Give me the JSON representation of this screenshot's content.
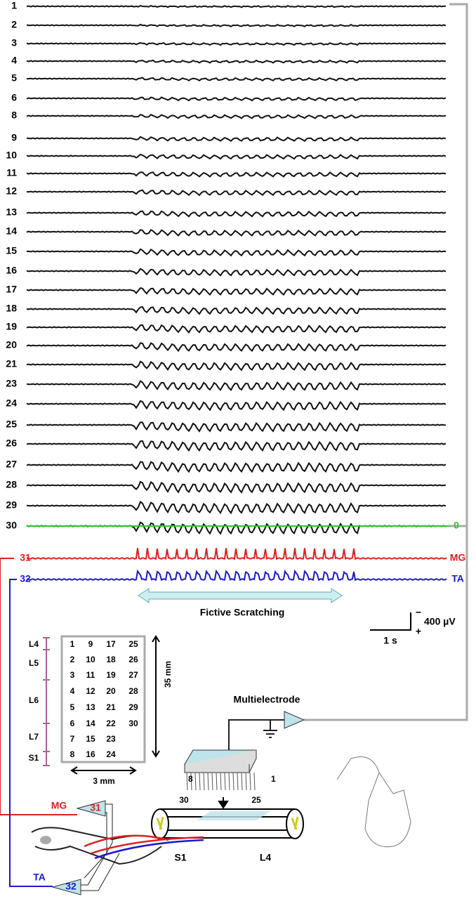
{
  "traces": {
    "labels": [
      "1",
      "2",
      "3",
      "4",
      "5",
      "6",
      "8",
      "9",
      "10",
      "11",
      "12",
      "13",
      "14",
      "15",
      "16",
      "17",
      "18",
      "19",
      "20",
      "21",
      "23",
      "24",
      "25",
      "26",
      "27",
      "28",
      "29",
      "30"
    ],
    "zero_label": "0",
    "emg": [
      {
        "channel": "31",
        "muscle": "MG"
      },
      {
        "channel": "32",
        "muscle": "TA"
      }
    ]
  },
  "annotation": "Fictive Scratching",
  "scale_bar": {
    "time": "1 s",
    "voltage": "400 µV",
    "minus": "−",
    "plus": "+"
  },
  "electrode_map": {
    "rows": [
      [
        "1",
        "9",
        "17",
        "25"
      ],
      [
        "2",
        "10",
        "18",
        "26"
      ],
      [
        "3",
        "11",
        "19",
        "27"
      ],
      [
        "4",
        "12",
        "20",
        "28"
      ],
      [
        "5",
        "13",
        "21",
        "29"
      ],
      [
        "6",
        "14",
        "22",
        "30"
      ],
      [
        "7",
        "15",
        "23"
      ],
      [
        "8",
        "16",
        "24"
      ]
    ],
    "segments": [
      "L4",
      "L5",
      "L6",
      "L7",
      "S1"
    ],
    "height": "35 mm",
    "width": "3 mm"
  },
  "setup": {
    "title": "Multielectrode",
    "pins": [
      "8",
      "1"
    ],
    "cord_channels": [
      "30",
      "25"
    ],
    "cord_segments": [
      "S1",
      "L4"
    ],
    "amplifiers": [
      {
        "muscle": "MG",
        "channel": "31"
      },
      {
        "muscle": "TA",
        "channel": "32"
      }
    ]
  }
}
